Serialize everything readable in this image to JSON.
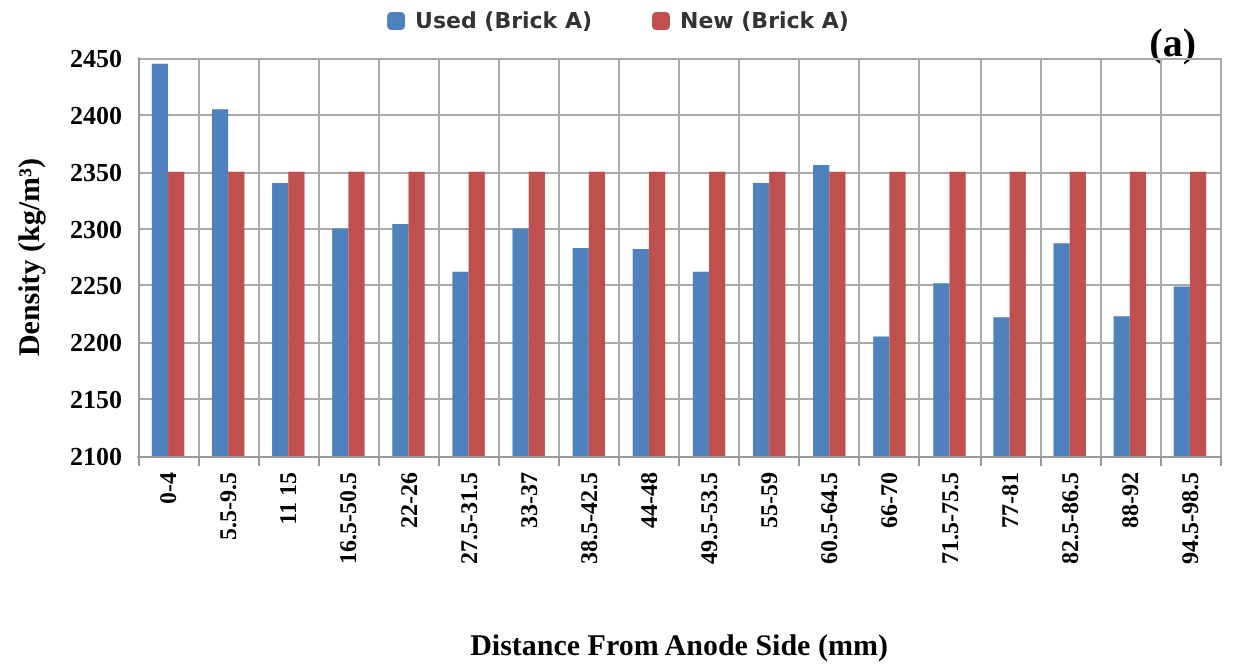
{
  "chart_data": {
    "type": "bar",
    "xlabel": "Distance From Anode Side (mm)",
    "ylabel": "Density (kg/m³)",
    "annotations": [
      "(a)"
    ],
    "categories": [
      "0-4",
      "5.5-9.5",
      "11 15",
      "16.5-50.5",
      "22-26",
      "27.5-31.5",
      "33-37",
      "38.5-42.5",
      "44-48",
      "49.5-53.5",
      "55-59",
      "60.5-64.5",
      "66-70",
      "71.5-75.5",
      "77-81",
      "82.5-86.5",
      "88-92",
      "94.5-98.5"
    ],
    "series": [
      {
        "name": "Used (Brick A)",
        "color": "#4f81bd",
        "values": [
          2445,
          2405,
          2340,
          2300,
          2304,
          2262,
          2300,
          2283,
          2282,
          2262,
          2340,
          2356,
          2205,
          2252,
          2222,
          2287,
          2223,
          2249
        ]
      },
      {
        "name": "New (Brick A)",
        "color": "#c0504d",
        "values": [
          2350,
          2350,
          2350,
          2350,
          2350,
          2350,
          2350,
          2350,
          2350,
          2350,
          2350,
          2350,
          2350,
          2350,
          2350,
          2350,
          2350,
          2350
        ]
      }
    ],
    "ylim": [
      2100,
      2450
    ],
    "yticks": [
      2100,
      2150,
      2200,
      2250,
      2300,
      2350,
      2400,
      2450
    ],
    "grid": true,
    "legend": "top"
  }
}
